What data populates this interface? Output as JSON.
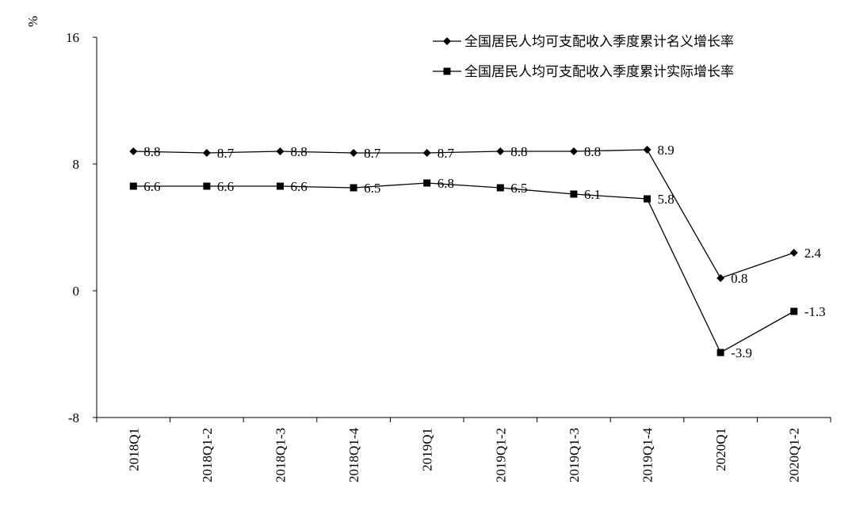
{
  "chart_data": {
    "type": "line",
    "title": "",
    "xlabel": "",
    "ylabel": "%",
    "ylim": [
      -8,
      16
    ],
    "yticks": [
      -8,
      0,
      8,
      16
    ],
    "categories": [
      "2018Q1",
      "2018Q1-2",
      "2018Q1-3",
      "2018Q1-4",
      "2019Q1",
      "2019Q1-2",
      "2019Q1-3",
      "2019Q1-4",
      "2020Q1",
      "2020Q1-2"
    ],
    "legend_position": "top-right",
    "grid": false,
    "series": [
      {
        "name": "全国居民人均可支配收入季度累计名义增长率",
        "marker": "diamond",
        "values": [
          8.8,
          8.7,
          8.8,
          8.7,
          8.7,
          8.8,
          8.8,
          8.9,
          0.8,
          2.4
        ],
        "labels": [
          "8.8",
          "8.7",
          "8.8",
          "8.7",
          "8.7",
          "8.8",
          "8.8",
          "8.9",
          "0.8",
          "2.4"
        ]
      },
      {
        "name": "全国居民人均可支配收入季度累计实际增长率",
        "marker": "square",
        "values": [
          6.6,
          6.6,
          6.6,
          6.5,
          6.8,
          6.5,
          6.1,
          5.8,
          -3.9,
          -1.3
        ],
        "labels": [
          "6.6",
          "6.6",
          "6.6",
          "6.5",
          "6.8",
          "6.5",
          "6.1",
          "5.8",
          "-3.9",
          "-1.3"
        ]
      }
    ]
  }
}
